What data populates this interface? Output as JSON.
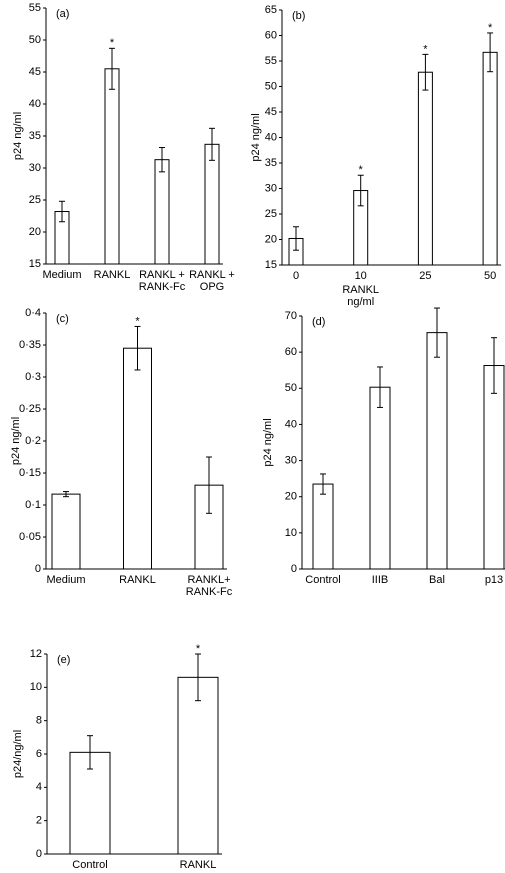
{
  "chart_data": [
    {
      "type": "bar",
      "panel_label": "(a)",
      "y_label": "p24 ng/ml",
      "categories": [
        "Medium",
        "RANKL",
        "RANKL + RANK-Fc",
        "RANKL + OPG"
      ],
      "values": [
        23.2,
        45.5,
        31.3,
        33.7
      ],
      "errors": [
        1.6,
        3.2,
        1.9,
        2.5
      ],
      "color": "#ffffff",
      "ylim": [
        15,
        55
      ],
      "yticks": [
        15,
        20,
        25,
        30,
        35,
        40,
        45,
        50,
        55
      ],
      "annotations": [
        {
          "category": "RANKL",
          "text": "*"
        }
      ]
    },
    {
      "type": "bar",
      "panel_label": "(b)",
      "y_label": "p24 ng/ml",
      "x_label": "RANKL ng/ml",
      "categories": [
        "0",
        "10",
        "25",
        "50"
      ],
      "values": [
        20.2,
        29.6,
        52.8,
        56.7
      ],
      "errors": [
        2.3,
        3.0,
        3.5,
        3.8
      ],
      "color": "#ffffff",
      "ylim": [
        15,
        65
      ],
      "yticks": [
        15,
        20,
        25,
        30,
        35,
        40,
        45,
        50,
        55,
        60,
        65
      ],
      "annotations": [
        {
          "category": "10",
          "text": "*"
        },
        {
          "category": "25",
          "text": "*"
        },
        {
          "category": "50",
          "text": "*"
        }
      ]
    },
    {
      "type": "bar",
      "panel_label": "(c)",
      "y_label": "p24 ng/ml",
      "categories": [
        "Medium",
        "RANKL",
        "RANKL+ RANK-Fc"
      ],
      "values": [
        0.117,
        0.345,
        0.131
      ],
      "errors": [
        0.004,
        0.034,
        0.044
      ],
      "color": "#ffffff",
      "ylim": [
        0,
        0.4
      ],
      "yticks": [
        0,
        {
          "value": 0.05,
          "label": "0·05"
        },
        {
          "value": 0.1,
          "label": "0·1"
        },
        {
          "value": 0.15,
          "label": "0·15"
        },
        {
          "value": 0.2,
          "label": "0·2"
        },
        {
          "value": 0.25,
          "label": "0·25"
        },
        {
          "value": 0.3,
          "label": "0·3"
        },
        {
          "value": 0.35,
          "label": "0·35"
        },
        {
          "value": 0.4,
          "label": "0·4"
        }
      ],
      "annotations": [
        {
          "category": "RANKL",
          "text": "*"
        }
      ]
    },
    {
      "type": "bar",
      "panel_label": "(d)",
      "y_label": "p24 ng/ml",
      "categories": [
        "Control",
        "IIIB",
        "Bal",
        "p13"
      ],
      "values": [
        23.5,
        50.3,
        65.4,
        56.3
      ],
      "errors": [
        2.8,
        5.6,
        6.8,
        7.7
      ],
      "color": "#ffffff",
      "ylim": [
        0,
        70
      ],
      "yticks": [
        0,
        10,
        20,
        30,
        40,
        50,
        60,
        70
      ]
    },
    {
      "type": "bar",
      "panel_label": "(e)",
      "y_label": "p24/ng/ml",
      "categories": [
        "Control",
        "RANKL"
      ],
      "values": [
        6.1,
        10.6
      ],
      "errors": [
        1.0,
        1.4
      ],
      "color": "#ffffff",
      "ylim": [
        0,
        12
      ],
      "yticks": [
        0,
        2,
        4,
        6,
        8,
        10,
        12
      ],
      "annotations": [
        {
          "category": "RANKL",
          "text": "*"
        }
      ]
    }
  ]
}
